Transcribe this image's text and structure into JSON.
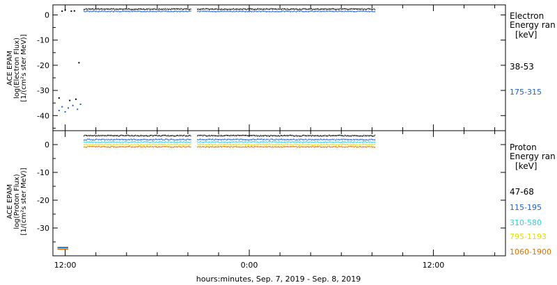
{
  "chart_data": [
    {
      "type": "scatter",
      "ylabel": [
        "ACE EPAM",
        "log(Electron Flux)",
        "[1/(cm²s ster MeV)]"
      ],
      "ylim": [
        -46,
        4
      ],
      "yticks": [
        0,
        -10,
        -20,
        -30,
        -40
      ],
      "legend_title": [
        "Electron",
        "Energy ran",
        "[keV]"
      ],
      "series": [
        {
          "name": "38-53",
          "color": "#000000",
          "level": 2.3,
          "early_points": [
            [
              11.8,
              1.5
            ],
            [
              12.0,
              2.0
            ],
            [
              12.4,
              1.5
            ],
            [
              12.6,
              1.6
            ],
            [
              12.9,
              -19.0
            ],
            [
              11.6,
              -33.0
            ],
            [
              12.3,
              -34.0
            ],
            [
              12.7,
              -33.5
            ]
          ]
        },
        {
          "name": "175-315",
          "color": "#1f5fd6",
          "level": 1.4,
          "early_points": [
            [
              11.6,
              -38.0
            ],
            [
              11.8,
              -36.5
            ],
            [
              12.0,
              -38.5
            ],
            [
              12.2,
              -37.0
            ],
            [
              12.5,
              -36.0
            ],
            [
              12.8,
              -37.5
            ],
            [
              13.0,
              -35.5
            ]
          ]
        }
      ]
    },
    {
      "type": "scatter",
      "ylabel": [
        "ACE EPAM",
        "log(Proton Flux)",
        "[1/(cm²s ster MeV)]"
      ],
      "ylim": [
        -40,
        5
      ],
      "yticks": [
        0,
        -10,
        -20,
        -30
      ],
      "legend_title": [
        "Proton",
        "Energy ran",
        "[keV]"
      ],
      "series": [
        {
          "name": "47-68",
          "color": "#000000",
          "level": 3.2
        },
        {
          "name": "115-195",
          "color": "#1f5fd6",
          "level": 1.8
        },
        {
          "name": "310-580",
          "color": "#2fd0e0",
          "level": 0.9
        },
        {
          "name": "795-1193",
          "color": "#e0e000",
          "level": 0.0
        },
        {
          "name": "1060-1900",
          "color": "#e07000",
          "level": -0.8
        }
      ],
      "early_level": -37.3
    }
  ],
  "x_axis": {
    "tick_labels": [
      {
        "label": "12:00",
        "hours": 12
      },
      {
        "label": "0:00",
        "hours": 24
      },
      {
        "label": "12:00",
        "hours": 36
      }
    ],
    "title": "hours:minutes, Sep.  7, 2019 - Sep.  8, 2019",
    "xlim": [
      11.2,
      40.7
    ],
    "data_range": [
      13.2,
      32.2
    ],
    "gap": [
      20.2,
      20.6
    ]
  }
}
